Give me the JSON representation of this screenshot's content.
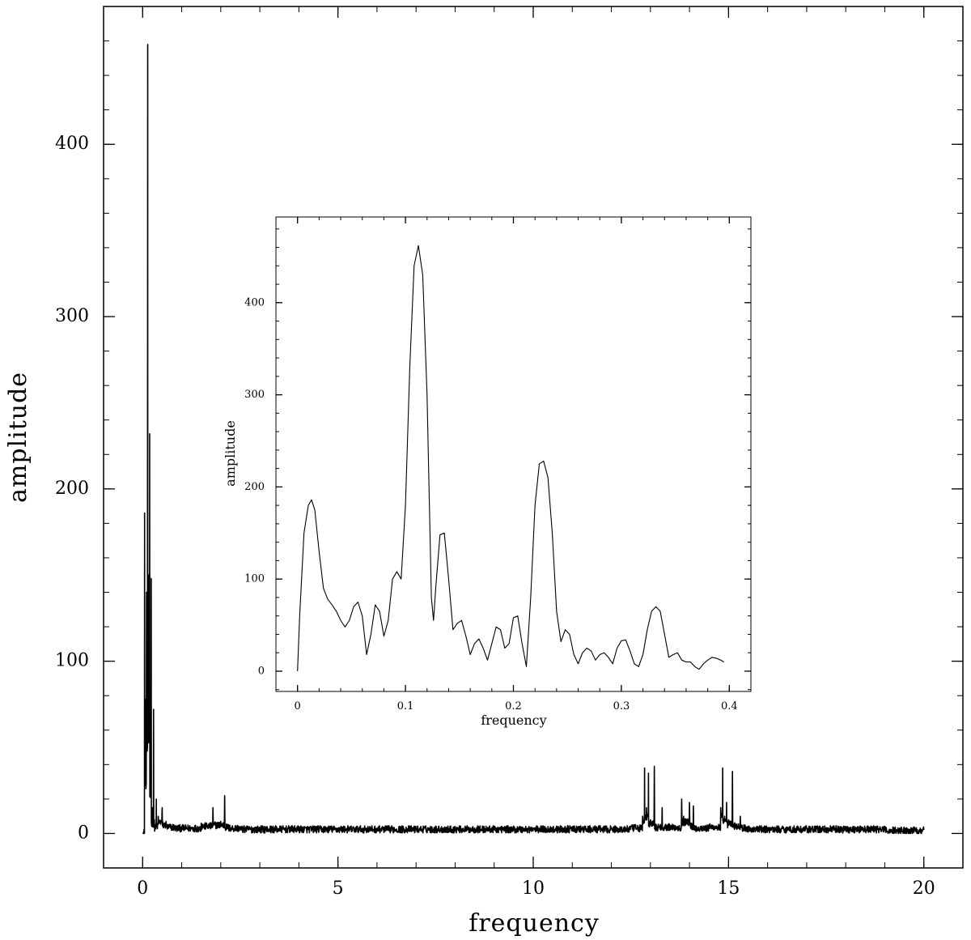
{
  "chart_data": [
    {
      "type": "line",
      "title": "",
      "xlabel": "frequency",
      "ylabel": "amplitude",
      "xlim": [
        -1,
        21
      ],
      "ylim": [
        -20,
        480
      ],
      "xticks": [
        0,
        5,
        10,
        15,
        20
      ],
      "xtick_labels": [
        "0",
        "5",
        "10",
        "15",
        "20"
      ],
      "yticks": [
        0,
        100,
        200,
        300,
        400
      ],
      "ytick_labels": [
        "0",
        "100",
        "200",
        "300",
        "400"
      ],
      "grid": false,
      "legend": "none",
      "line_color": "#000000",
      "noise_floor": 3,
      "series": [
        {
          "x": [
            0.0,
            0.05,
            0.08,
            0.1,
            0.13,
            0.15,
            0.18,
            0.2,
            0.22,
            0.25,
            0.28,
            0.3,
            0.35,
            0.4,
            0.5,
            0.6,
            0.8,
            1.0,
            1.5,
            1.8,
            2.0,
            2.1,
            2.2,
            2.5,
            3.0,
            4.0,
            5.0,
            6.0,
            7.0,
            8.0,
            9.0,
            10.0,
            11.0,
            12.0,
            12.5,
            12.8,
            12.85,
            12.9,
            12.95,
            13.0,
            13.1,
            13.15,
            13.3,
            13.5,
            13.8,
            13.85,
            14.0,
            14.05,
            14.1,
            14.3,
            14.5,
            14.8,
            14.85,
            14.9,
            14.95,
            15.0,
            15.1,
            15.15,
            15.3,
            15.5,
            16.0,
            17.0,
            18.0,
            19.0,
            20.0
          ],
          "values": [
            0,
            186,
            78,
            140,
            458,
            150,
            232,
            60,
            148,
            15,
            72,
            8,
            20,
            10,
            15,
            7,
            5,
            4,
            6,
            15,
            7,
            22,
            5,
            4,
            3,
            4,
            3,
            3,
            3,
            4,
            3,
            3,
            3,
            3,
            4,
            10,
            38,
            15,
            35,
            8,
            39,
            5,
            15,
            5,
            20,
            10,
            18,
            6,
            16,
            4,
            5,
            15,
            38,
            10,
            18,
            8,
            36,
            6,
            10,
            4,
            3,
            3,
            3,
            3,
            2
          ]
        }
      ]
    },
    {
      "type": "line",
      "title": "",
      "xlabel": "frequency",
      "ylabel": "amplitude",
      "xlim": [
        -0.02,
        0.42
      ],
      "ylim": [
        -22,
        493
      ],
      "xticks": [
        0,
        0.1,
        0.2,
        0.3,
        0.4
      ],
      "xtick_labels": [
        "0",
        "0.1",
        "0.2",
        "0.3",
        "0.4"
      ],
      "yticks": [
        0,
        100,
        200,
        300,
        400
      ],
      "ytick_labels": [
        "0",
        "100",
        "200",
        "300",
        "400"
      ],
      "grid": false,
      "legend": "none",
      "line_color": "#000000",
      "series": [
        {
          "x": [
            0.0,
            0.002,
            0.006,
            0.01,
            0.013,
            0.016,
            0.02,
            0.024,
            0.028,
            0.032,
            0.036,
            0.04,
            0.044,
            0.048,
            0.052,
            0.056,
            0.06,
            0.064,
            0.068,
            0.072,
            0.076,
            0.08,
            0.084,
            0.088,
            0.092,
            0.096,
            0.1,
            0.104,
            0.108,
            0.112,
            0.116,
            0.12,
            0.124,
            0.126,
            0.128,
            0.132,
            0.136,
            0.14,
            0.144,
            0.148,
            0.152,
            0.156,
            0.16,
            0.164,
            0.168,
            0.172,
            0.176,
            0.18,
            0.184,
            0.188,
            0.192,
            0.196,
            0.2,
            0.204,
            0.208,
            0.212,
            0.216,
            0.22,
            0.224,
            0.228,
            0.232,
            0.236,
            0.24,
            0.244,
            0.248,
            0.252,
            0.256,
            0.26,
            0.264,
            0.268,
            0.272,
            0.276,
            0.28,
            0.284,
            0.288,
            0.292,
            0.296,
            0.3,
            0.304,
            0.308,
            0.312,
            0.316,
            0.32,
            0.324,
            0.328,
            0.332,
            0.336,
            0.34,
            0.344,
            0.348,
            0.352,
            0.356,
            0.36,
            0.364,
            0.368,
            0.372,
            0.376,
            0.38,
            0.384,
            0.388,
            0.392,
            0.395
          ],
          "values": [
            0,
            60,
            150,
            180,
            186,
            175,
            130,
            90,
            78,
            72,
            65,
            55,
            48,
            55,
            70,
            75,
            60,
            18,
            40,
            72,
            65,
            38,
            55,
            100,
            108,
            100,
            180,
            330,
            440,
            462,
            430,
            300,
            80,
            55,
            90,
            148,
            150,
            100,
            45,
            52,
            55,
            38,
            18,
            30,
            35,
            25,
            12,
            30,
            48,
            45,
            25,
            30,
            58,
            60,
            30,
            5,
            80,
            180,
            225,
            228,
            210,
            150,
            65,
            32,
            45,
            40,
            18,
            8,
            20,
            25,
            22,
            12,
            18,
            20,
            15,
            8,
            25,
            33,
            34,
            22,
            8,
            5,
            18,
            45,
            65,
            70,
            65,
            40,
            15,
            18,
            20,
            12,
            10,
            10,
            5,
            2,
            8,
            12,
            15,
            14,
            12,
            10
          ]
        }
      ]
    }
  ]
}
